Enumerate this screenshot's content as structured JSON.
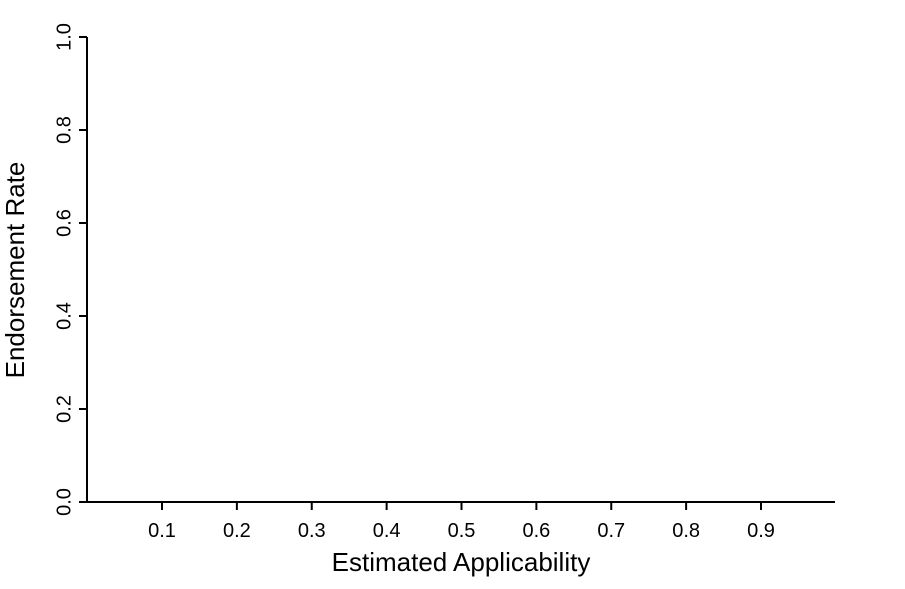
{
  "chart_data": {
    "type": "scatter",
    "title": "",
    "xlabel": "Estimated Applicability",
    "ylabel": "Endorsement Rate",
    "xlim": [
      0,
      1
    ],
    "ylim": [
      0,
      1
    ],
    "x_ticks": [
      0.1,
      0.2,
      0.3,
      0.4,
      0.5,
      0.6,
      0.7,
      0.8,
      0.9
    ],
    "x_tick_labels": [
      "0.1",
      "0.2",
      "0.3",
      "0.4",
      "0.5",
      "0.6",
      "0.7",
      "0.8",
      "0.9"
    ],
    "y_ticks": [
      0.0,
      0.2,
      0.4,
      0.6,
      0.8,
      1.0
    ],
    "y_tick_labels": [
      "0.0",
      "0.2",
      "0.4",
      "0.6",
      "0.8",
      "1.0"
    ],
    "grid": false,
    "series": [],
    "colors": {
      "axis": "#000000",
      "background": "#ffffff"
    }
  }
}
